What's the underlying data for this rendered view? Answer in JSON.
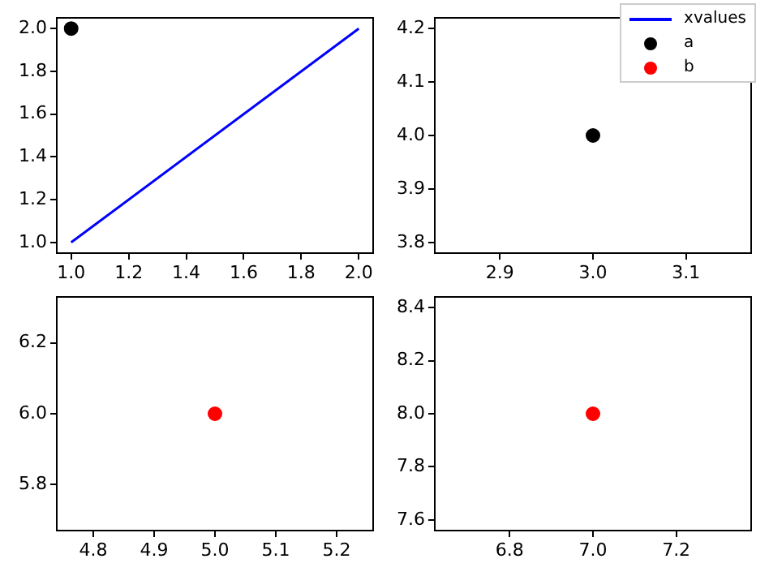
{
  "chart_data": [
    {
      "type": "line",
      "legend": "top right",
      "grid": false,
      "xlim": [
        0.95,
        2.05
      ],
      "ylim": [
        0.95,
        2.05
      ],
      "xticks": [
        {
          "value": 1,
          "label": "1.0"
        },
        {
          "value": 1.2,
          "label": "1.2"
        },
        {
          "value": 1.4,
          "label": "1.4"
        },
        {
          "value": 1.6,
          "label": "1.6"
        },
        {
          "value": 1.8,
          "label": "1.8"
        },
        {
          "value": 2,
          "label": "2.0"
        }
      ],
      "yticks": [
        {
          "value": 1,
          "label": "1.0"
        },
        {
          "value": 1.2,
          "label": "1.2"
        },
        {
          "value": 1.4,
          "label": "1.4"
        },
        {
          "value": 1.6,
          "label": "1.6"
        },
        {
          "value": 1.8,
          "label": "1.8"
        },
        {
          "value": 2,
          "label": "2.0"
        }
      ],
      "series": [
        {
          "name": "xvalues",
          "color": "#0000ff",
          "x": [
            1,
            2
          ],
          "values": [
            1,
            2
          ]
        },
        {
          "type": "scatter",
          "marker": "circle",
          "color": "#000000",
          "x": [
            1
          ],
          "values": [
            2
          ]
        }
      ]
    },
    {
      "type": "scatter",
      "legend": "top right",
      "grid": false,
      "xlim": [
        2.83,
        3.17
      ],
      "ylim": [
        3.78,
        4.22
      ],
      "xticks": [
        2.9,
        {
          "value": 3,
          "label": "3.0"
        },
        3.1
      ],
      "yticks": [
        3.8,
        3.9,
        {
          "value": 4,
          "label": "4.0"
        },
        4.1,
        4.2
      ],
      "series": [
        {
          "name": "a",
          "marker": "circle",
          "color": "#000000",
          "x": [
            3
          ],
          "values": [
            4
          ]
        }
      ]
    },
    {
      "type": "scatter",
      "legend": "top right",
      "grid": false,
      "xlim": [
        4.74,
        5.26
      ],
      "ylim": [
        5.67,
        6.33
      ],
      "xticks": [
        4.8,
        4.9,
        {
          "value": 5,
          "label": "5.0"
        },
        5.1,
        5.2
      ],
      "yticks": [
        5.8,
        {
          "value": 6,
          "label": "6.0"
        },
        6.2
      ],
      "series": [
        {
          "name": "b",
          "marker": "circle",
          "color": "#ff0000",
          "x": [
            5
          ],
          "values": [
            6
          ]
        }
      ]
    },
    {
      "type": "scatter",
      "legend": false,
      "grid": false,
      "xlim": [
        6.62,
        7.38
      ],
      "ylim": [
        7.56,
        8.44
      ],
      "xticks": [
        6.8,
        {
          "value": 7,
          "label": "7.0"
        },
        7.2
      ],
      "yticks": [
        7.6,
        7.8,
        {
          "value": 8,
          "label": "8.0"
        },
        8.2,
        8.4
      ],
      "series": [
        {
          "marker": "circle",
          "color": "#ff0000",
          "x": [
            7
          ],
          "values": [
            8
          ]
        }
      ]
    }
  ]
}
